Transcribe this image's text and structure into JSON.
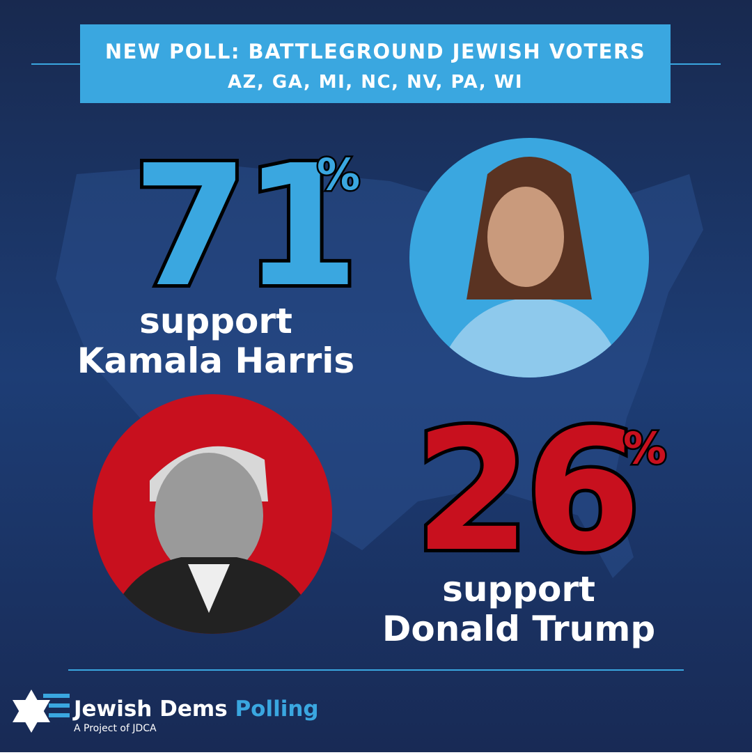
{
  "header": {
    "title": "NEW POLL: BATTLEGROUND JEWISH VOTERS",
    "subtitle": "AZ, GA, MI, NC, NV, PA, WI"
  },
  "candidates": [
    {
      "value": 71,
      "unit": "%",
      "caption": "support",
      "name": "Kamala Harris"
    },
    {
      "value": 26,
      "unit": "%",
      "caption": "support",
      "name": "Donald Trump"
    }
  ],
  "brand": {
    "name": "Jewish Dems",
    "highlight": "Polling",
    "tagline": "A Project of JDCA"
  }
}
